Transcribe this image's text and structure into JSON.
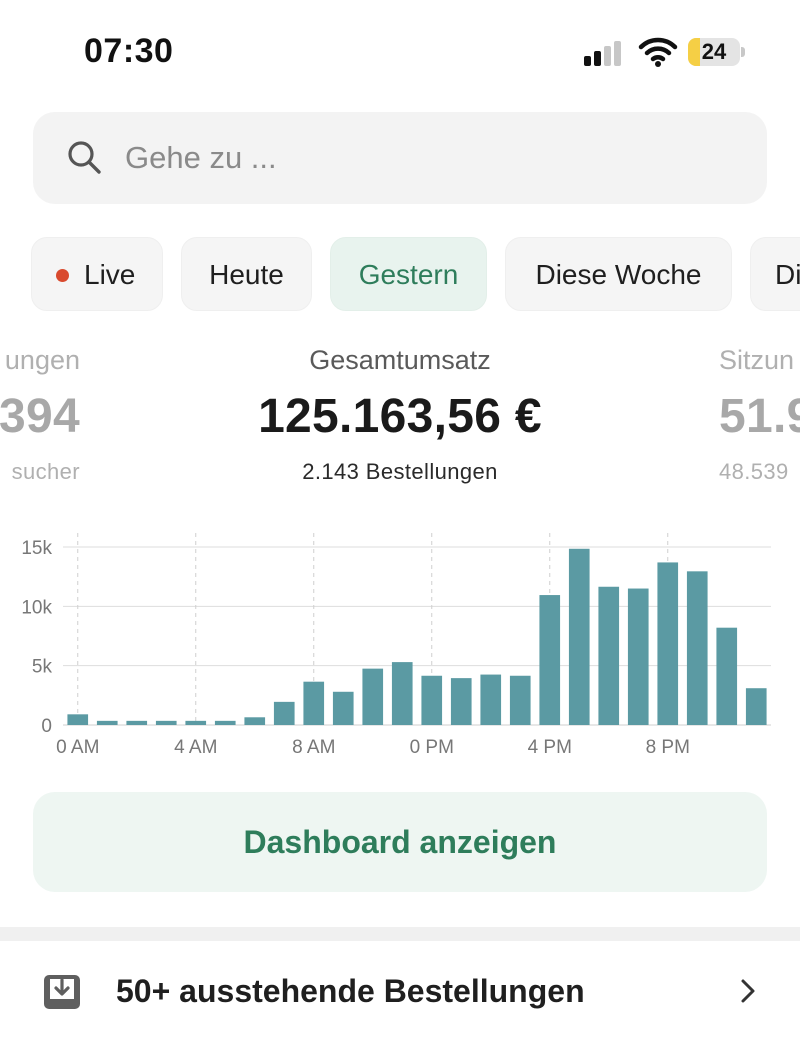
{
  "status_bar": {
    "time": "07:30",
    "battery_level": "24",
    "battery_fraction": 0.24,
    "battery_color": "#f5cf45",
    "signal_bars_active": 2,
    "signal_bars_total": 4,
    "icons": [
      "signal-icon",
      "wifi-icon",
      "battery-icon"
    ]
  },
  "search": {
    "placeholder": "Gehe zu ...",
    "icon": "search-icon"
  },
  "filters": {
    "chips": [
      {
        "label": "Live",
        "has_dot": true,
        "dot_color": "#d94a2e",
        "active": false
      },
      {
        "label": "Heute",
        "active": false
      },
      {
        "label": "Gestern",
        "active": true
      },
      {
        "label": "Diese Woche",
        "active": false
      },
      {
        "label": "Di",
        "active": false
      }
    ],
    "active_color": "#2e7d5b"
  },
  "metrics": {
    "left": {
      "label": "ungen",
      "value": "394",
      "sub": "sucher"
    },
    "center": {
      "label": "Gesamtumsatz",
      "value": "125.163,56 €",
      "sub": "2.143 Bestellungen"
    },
    "right": {
      "label": "Sitzun",
      "value": "51.9",
      "sub": "48.539"
    }
  },
  "chart_data": {
    "type": "bar",
    "bar_color": "#5b9aa3",
    "x_tick_labels": [
      "0 AM",
      "4 AM",
      "8 AM",
      "0 PM",
      "4 PM",
      "8 PM"
    ],
    "y_tick_labels": [
      "0",
      "5k",
      "10k",
      "15k"
    ],
    "ylim": [
      0,
      15000
    ],
    "grid": true,
    "hours": [
      0,
      1,
      2,
      3,
      4,
      5,
      6,
      7,
      8,
      9,
      10,
      11,
      12,
      13,
      14,
      15,
      16,
      17,
      18,
      19,
      20,
      21,
      22,
      23
    ],
    "values": [
      900,
      350,
      350,
      350,
      350,
      350,
      650,
      1950,
      3650,
      2800,
      4750,
      5300,
      4150,
      3950,
      4250,
      4150,
      10950,
      14850,
      11650,
      11500,
      13700,
      12950,
      8200,
      3100
    ]
  },
  "actions": {
    "dashboard_label": "Dashboard anzeigen"
  },
  "pending": {
    "label": "50+ ausstehende Bestellungen",
    "icon": "inbox-download-icon",
    "chevron": "chevron-right-icon"
  }
}
